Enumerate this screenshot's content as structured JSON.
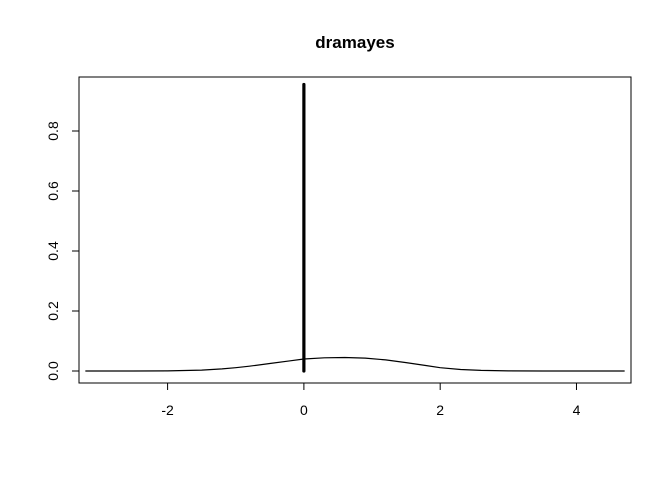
{
  "chart_data": {
    "type": "line",
    "title": "dramayes",
    "xlabel": "",
    "ylabel": "",
    "xlim": [
      -3.3,
      4.8
    ],
    "ylim": [
      -0.04,
      0.98
    ],
    "x_ticks": [
      -2,
      0,
      2,
      4
    ],
    "x_tick_labels": [
      "-2",
      "0",
      "2",
      "4"
    ],
    "y_ticks": [
      0.0,
      0.2,
      0.4,
      0.6,
      0.8
    ],
    "y_tick_labels": [
      "0.0",
      "0.2",
      "0.4",
      "0.6",
      "0.8"
    ],
    "grid": false,
    "legend": "none",
    "series": [
      {
        "x": [
          -3.2,
          -2.5,
          -2.0,
          -1.5,
          -1.2,
          -1.0,
          -0.8,
          -0.5,
          -0.2,
          0.0,
          0.3,
          0.6,
          0.9,
          1.2,
          1.5,
          1.8,
          2.0,
          2.3,
          2.6,
          3.0,
          3.5,
          4.0,
          4.7
        ],
        "y": [
          0.0,
          0.0,
          0.0005,
          0.003,
          0.007,
          0.011,
          0.016,
          0.025,
          0.034,
          0.04,
          0.044,
          0.045,
          0.043,
          0.037,
          0.028,
          0.018,
          0.011,
          0.005,
          0.002,
          0.0005,
          0.0,
          0.0,
          0.0
        ],
        "color": "#000000",
        "line_width": "thin"
      },
      {
        "x": [
          0,
          0
        ],
        "y": [
          0.0,
          0.955
        ],
        "color": "#000000",
        "line_width": "thick"
      }
    ]
  }
}
